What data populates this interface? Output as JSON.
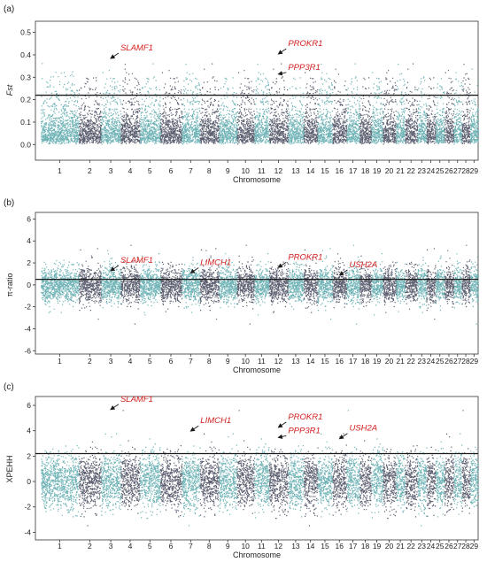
{
  "colors": {
    "teal": "#6fb3b6",
    "slate": "#5c5f70",
    "threshold": "#1a1a1a",
    "gene": "#d22020"
  },
  "chromosomes": [
    "1",
    "2",
    "3",
    "4",
    "5",
    "6",
    "7",
    "8",
    "9",
    "10",
    "11",
    "12",
    "13",
    "14",
    "15",
    "16",
    "17",
    "18",
    "19",
    "20",
    "21",
    "22",
    "23",
    "24",
    "25",
    "26",
    "27",
    "28",
    "29"
  ],
  "chart_data": [
    {
      "type": "scatter",
      "panel": "(a)",
      "xlabel": "Chromosome",
      "ylabel": "Fst",
      "ylim": [
        -0.07,
        0.55
      ],
      "yticks": [
        "0.0",
        "0.1",
        "0.2",
        "0.3",
        "0.4",
        "0.5"
      ],
      "threshold": 0.22,
      "genes": [
        {
          "name": "SLAMF1",
          "chr": 3,
          "value": 0.38
        },
        {
          "name": "PROKR1",
          "chr": 12,
          "value": 0.4
        },
        {
          "name": "PPP3R1",
          "chr": 12,
          "value": 0.31
        }
      ]
    },
    {
      "type": "scatter",
      "panel": "(b)",
      "xlabel": "Chromosome",
      "ylabel": "π-ratio",
      "ylim": [
        -6.3,
        6.6
      ],
      "yticks": [
        "-6",
        "-4",
        "-2",
        "0",
        "2",
        "4",
        "6"
      ],
      "threshold": 0.5,
      "genes": [
        {
          "name": "SLAMF1",
          "chr": 3,
          "value": 1.2
        },
        {
          "name": "LIMCH1",
          "chr": 7,
          "value": 1.0
        },
        {
          "name": "PROKR1",
          "chr": 12,
          "value": 1.5
        },
        {
          "name": "USH2A",
          "chr": 16,
          "value": 0.8
        }
      ]
    },
    {
      "type": "scatter",
      "panel": "(c)",
      "xlabel": "Chromosome",
      "ylabel": "XPEHH",
      "ylim": [
        -4.6,
        6.7
      ],
      "yticks": [
        "-4",
        "-2",
        "0",
        "2",
        "4",
        "6"
      ],
      "threshold": 2.2,
      "genes": [
        {
          "name": "SLAMF1",
          "chr": 3,
          "value": 5.6
        },
        {
          "name": "LIMCH1",
          "chr": 7,
          "value": 3.9
        },
        {
          "name": "PROKR1",
          "chr": 12,
          "value": 4.2
        },
        {
          "name": "PPP3R1",
          "chr": 12,
          "value": 3.4
        },
        {
          "name": "USH2A",
          "chr": 16,
          "value": 3.3
        }
      ]
    }
  ]
}
